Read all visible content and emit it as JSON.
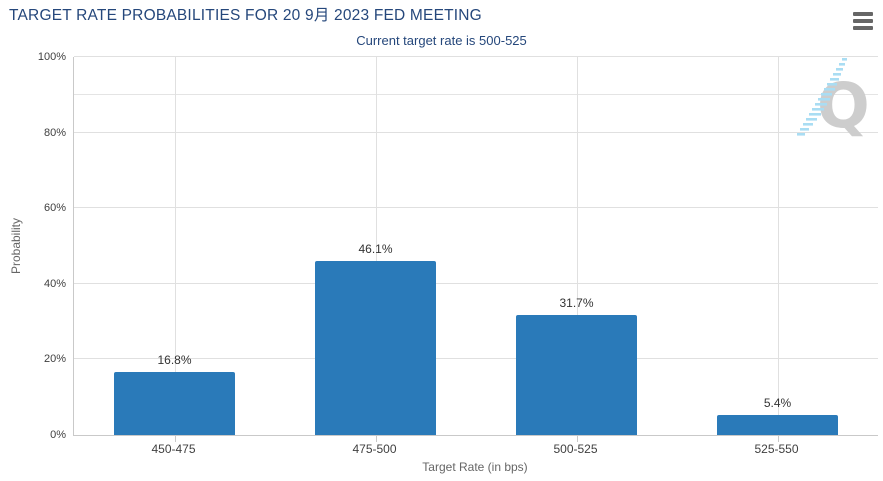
{
  "header": {
    "title": "TARGET RATE PROBABILITIES FOR 20 9月 2023 FED MEETING",
    "subtitle": "Current target rate is 500-525",
    "menu_icon": "hamburger-menu",
    "watermark_icon": "quandl-q-logo"
  },
  "colors": {
    "bar": "#2a7ab9",
    "title": "#25477b",
    "grid": "#e0e0e0",
    "grid_minor": "#e4e4e4",
    "axis": "#c9c9c9",
    "tick_text": "#404040",
    "bar_label_text": "#333333",
    "axis_title_text": "#666666",
    "menu": "#666666",
    "watermark_q": "#cdcdcd",
    "watermark_dash": "#a9ddf3"
  },
  "chart_data": {
    "type": "bar",
    "title": "TARGET RATE PROBABILITIES FOR 20 9月 2023 FED MEETING",
    "subtitle": "Current target rate is 500-525",
    "categories": [
      "450-475",
      "475-500",
      "500-525",
      "525-550"
    ],
    "values": [
      16.8,
      46.1,
      31.7,
      5.4
    ],
    "value_labels": [
      "16.8%",
      "46.1%",
      "31.7%",
      "5.4%"
    ],
    "xlabel": "Target Rate (in bps)",
    "ylabel": "Probability",
    "ylim": [
      0,
      100
    ],
    "ytick_values": [
      0,
      20,
      40,
      60,
      80,
      100
    ],
    "yticks": [
      "0%",
      "20%",
      "40%",
      "60%",
      "80%",
      "100%"
    ],
    "minor_gridlines": [
      90
    ],
    "grid": true,
    "legend": false,
    "bar_color": "#2a7ab9"
  }
}
